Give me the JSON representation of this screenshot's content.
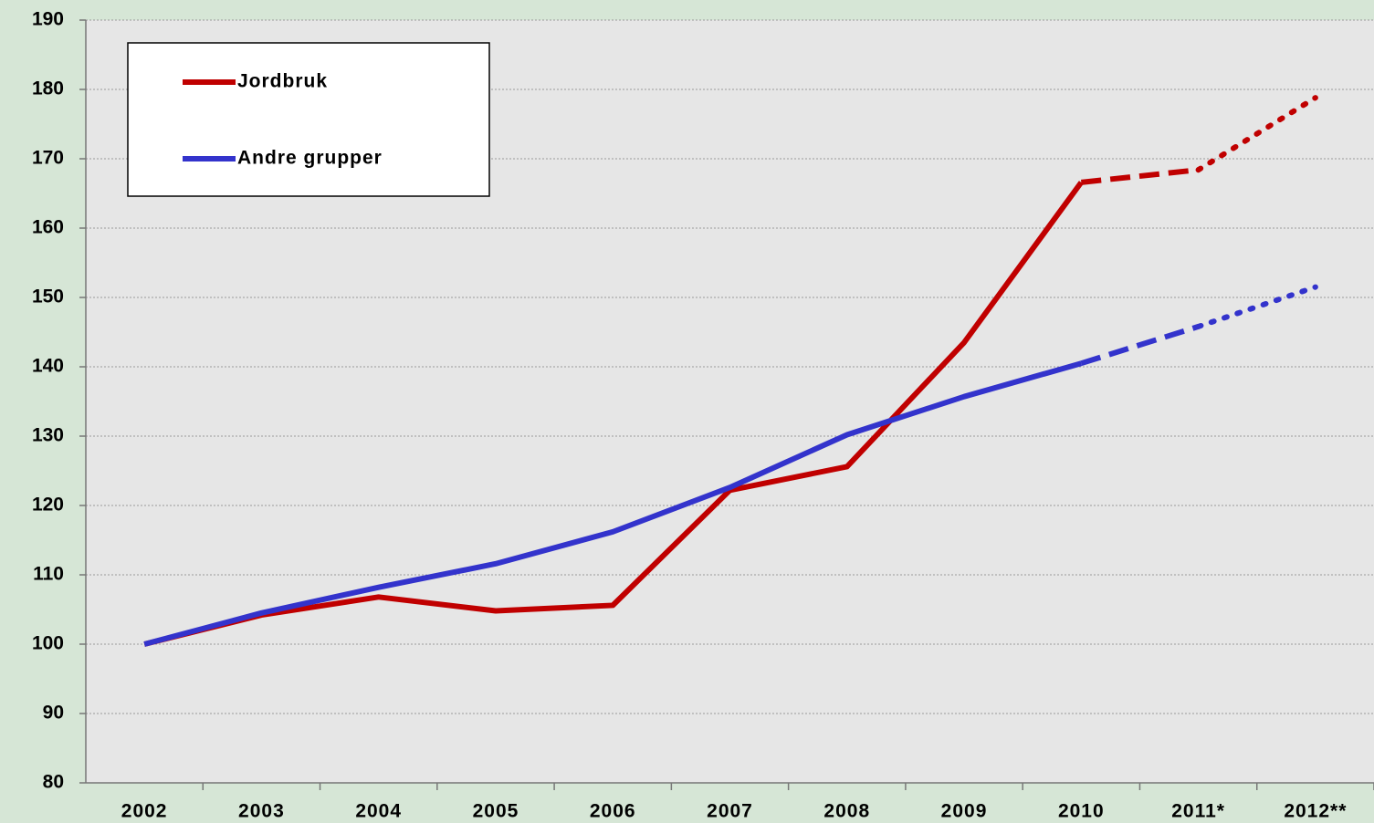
{
  "chart_data": {
    "type": "line",
    "categories": [
      "2002",
      "2003",
      "2004",
      "2005",
      "2006",
      "2007",
      "2008",
      "2009",
      "2010",
      "2011*",
      "2012**"
    ],
    "series": [
      {
        "name": "Jordbruk",
        "color": "#c00000",
        "values": [
          100,
          104.2,
          106.8,
          104.8,
          105.6,
          122.2,
          125.6,
          143.5,
          166.6,
          168.4,
          178.8
        ],
        "styles": [
          "solid",
          "solid",
          "solid",
          "solid",
          "solid",
          "solid",
          "solid",
          "solid",
          "solid",
          "dashed",
          "dotted"
        ]
      },
      {
        "name": "Andre grupper",
        "color": "#3333cc",
        "values": [
          100,
          104.5,
          108.2,
          111.6,
          116.2,
          122.6,
          130.2,
          135.7,
          140.5,
          145.8,
          151.5
        ],
        "styles": [
          "solid",
          "solid",
          "solid",
          "solid",
          "solid",
          "solid",
          "solid",
          "solid",
          "solid",
          "dashed",
          "dotted"
        ]
      }
    ],
    "ylim": [
      80,
      190
    ],
    "yticks": [
      80,
      90,
      100,
      110,
      120,
      130,
      140,
      150,
      160,
      170,
      180,
      190
    ],
    "grid": true,
    "legend": "top-left"
  }
}
